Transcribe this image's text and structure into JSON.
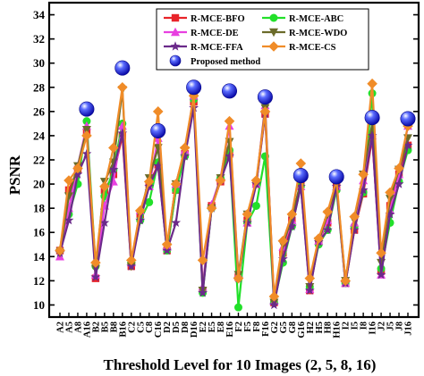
{
  "chart_data": {
    "type": "line",
    "title": "",
    "xlabel": "Threshold Level for 10 Images (2, 5, 8, 16)",
    "ylabel": "PSNR",
    "ylim": [
      9,
      35
    ],
    "yticks": [
      10,
      12,
      14,
      16,
      18,
      20,
      22,
      24,
      26,
      28,
      30,
      32,
      34
    ],
    "grid": false,
    "legend_position": "top-right",
    "categories": [
      "A2",
      "A5",
      "A8",
      "A16",
      "B2",
      "B5",
      "B8",
      "B16",
      "C2",
      "C5",
      "C8",
      "C16",
      "D2",
      "D5",
      "D8",
      "D16",
      "E2",
      "E5",
      "E8",
      "E16",
      "F2",
      "F5",
      "F8",
      "F16",
      "G2",
      "G5",
      "G8",
      "G16",
      "H2",
      "H5",
      "H8",
      "H16",
      "I2",
      "I5",
      "I8",
      "I16",
      "J2",
      "J5",
      "J8",
      "J16"
    ],
    "series": [
      {
        "name": "R-MCE-BFO",
        "color": "#e8242a",
        "marker": "square",
        "values": [
          14.5,
          19.5,
          21.2,
          24.2,
          12.2,
          19.5,
          20.8,
          24.0,
          13.2,
          17.5,
          20.0,
          21.6,
          14.5,
          19.5,
          22.5,
          26.8,
          11.2,
          18.2,
          20.2,
          22.5,
          12.3,
          17.0,
          20.0,
          25.8,
          10.2,
          14.3,
          17.0,
          20.2,
          11.2,
          15.3,
          16.8,
          19.8,
          11.8,
          16.2,
          19.2,
          23.8,
          12.8,
          18.2,
          20.8,
          23.2
        ]
      },
      {
        "name": "R-MCE-ABC",
        "color": "#22e02a",
        "marker": "circle",
        "values": [
          14.5,
          17.5,
          20.0,
          25.2,
          13.2,
          19.0,
          21.2,
          25.0,
          13.5,
          17.0,
          18.5,
          21.8,
          14.5,
          19.5,
          22.3,
          27.0,
          11.0,
          18.0,
          20.5,
          22.8,
          9.8,
          16.8,
          18.2,
          22.3,
          10.2,
          13.5,
          16.5,
          19.8,
          11.5,
          15.0,
          16.2,
          19.5,
          11.8,
          16.5,
          19.3,
          27.5,
          13.0,
          16.8,
          20.2,
          22.8
        ]
      },
      {
        "name": "R-MCE-DE",
        "color": "#e840e0",
        "marker": "triangle-up",
        "values": [
          14.0,
          18.0,
          21.5,
          24.8,
          12.5,
          18.2,
          20.2,
          24.8,
          13.5,
          17.8,
          19.8,
          23.8,
          14.8,
          20.0,
          22.8,
          27.3,
          11.5,
          18.3,
          20.5,
          24.8,
          12.5,
          16.8,
          20.0,
          26.5,
          10.3,
          14.8,
          17.0,
          19.8,
          11.3,
          15.3,
          17.0,
          19.8,
          11.8,
          16.8,
          20.3,
          24.0,
          12.5,
          17.8,
          20.8,
          24.8
        ]
      },
      {
        "name": "R-MCE-WDO",
        "color": "#6b6b2a",
        "marker": "triangle-down",
        "values": [
          14.3,
          19.0,
          21.5,
          24.5,
          13.0,
          20.2,
          21.8,
          27.8,
          13.2,
          17.5,
          20.5,
          23.0,
          14.8,
          20.0,
          22.8,
          27.2,
          11.2,
          18.0,
          20.5,
          23.5,
          12.5,
          17.5,
          20.0,
          26.3,
          10.2,
          15.0,
          17.2,
          20.2,
          11.5,
          15.3,
          17.5,
          20.0,
          12.0,
          17.0,
          20.8,
          25.0,
          13.5,
          18.8,
          21.2,
          23.8
        ]
      },
      {
        "name": "R-MCE-FFA",
        "color": "#6b2a8a",
        "marker": "star",
        "values": [
          14.3,
          17.0,
          20.8,
          22.5,
          12.3,
          16.8,
          21.2,
          24.2,
          13.2,
          17.0,
          19.8,
          21.5,
          14.5,
          16.8,
          22.3,
          26.3,
          11.0,
          18.0,
          20.3,
          22.3,
          12.2,
          16.8,
          20.0,
          25.8,
          10.0,
          13.8,
          16.5,
          19.8,
          11.2,
          15.2,
          16.2,
          19.8,
          11.8,
          16.2,
          19.5,
          24.0,
          12.5,
          17.5,
          20.0,
          23.2
        ]
      },
      {
        "name": "R-MCE-CS",
        "color": "#f08c28",
        "marker": "diamond",
        "values": [
          14.5,
          20.3,
          21.3,
          24.0,
          13.5,
          19.8,
          23.0,
          28.0,
          13.7,
          17.8,
          20.2,
          26.0,
          15.0,
          20.0,
          23.0,
          27.3,
          13.7,
          18.0,
          20.3,
          25.2,
          12.2,
          17.5,
          20.3,
          26.0,
          10.7,
          15.3,
          17.5,
          21.7,
          12.2,
          15.5,
          17.7,
          20.3,
          12.0,
          17.3,
          20.8,
          28.3,
          14.3,
          19.3,
          21.3,
          24.8
        ]
      },
      {
        "name": "Proposed method",
        "color": "#1a1ae0",
        "marker": "sphere",
        "line": false,
        "x": [
          "A16",
          "B16",
          "C16",
          "D16",
          "E16",
          "F16",
          "G16",
          "H16",
          "I16",
          "J16"
        ],
        "values": [
          26.2,
          29.6,
          24.4,
          28.0,
          27.7,
          27.2,
          20.7,
          20.6,
          25.5,
          25.4
        ]
      }
    ]
  }
}
